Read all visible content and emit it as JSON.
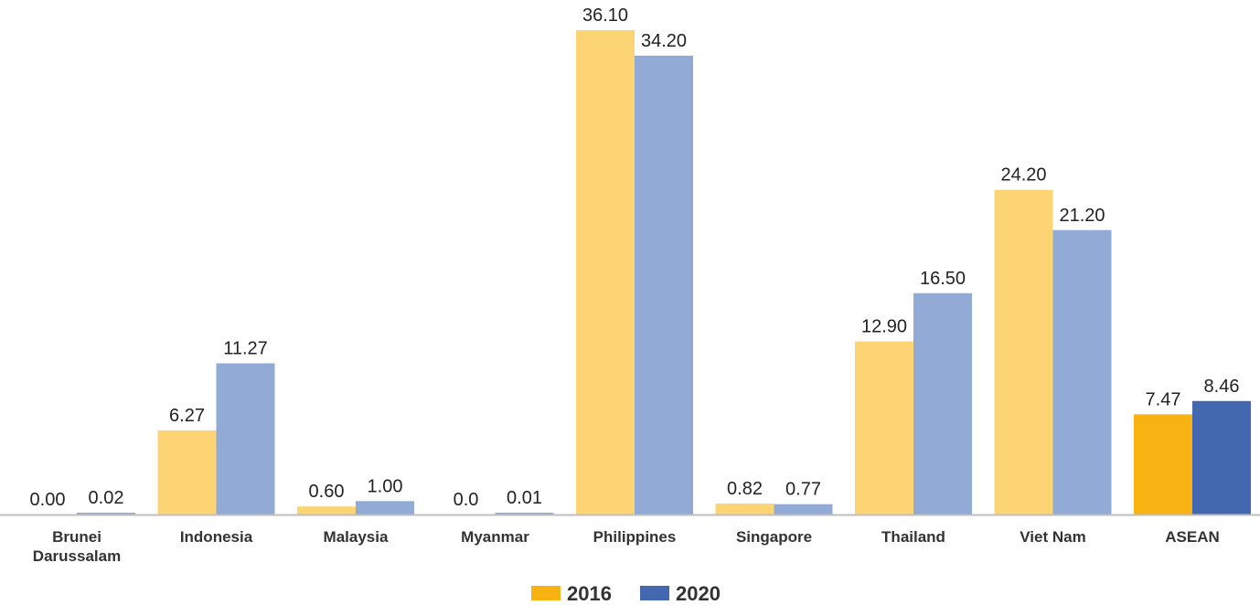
{
  "chart_data": {
    "type": "bar",
    "categories": [
      [
        "Brunei",
        "Darussalam"
      ],
      [
        "Indonesia"
      ],
      [
        "Malaysia"
      ],
      [
        "Myanmar"
      ],
      [
        "Philippines"
      ],
      [
        "Singapore"
      ],
      [
        "Thailand"
      ],
      [
        "Viet Nam"
      ],
      [
        "ASEAN"
      ]
    ],
    "series": [
      {
        "name": "2016",
        "values": [
          0.0,
          6.27,
          0.6,
          0.0,
          36.1,
          0.82,
          12.9,
          24.2,
          7.47
        ],
        "labels": [
          "0.00",
          "6.27",
          "0.60",
          "0.0",
          "36.10",
          "0.82",
          "12.90",
          "24.20",
          "7.47"
        ],
        "color": "#FCD473",
        "highlight_color": "#F8B312"
      },
      {
        "name": "2020",
        "values": [
          0.02,
          11.27,
          1.0,
          0.01,
          34.2,
          0.77,
          16.5,
          21.2,
          8.46
        ],
        "labels": [
          "0.02",
          "11.27",
          "1.00",
          "0.01",
          "34.20",
          "0.77",
          "16.50",
          "21.20",
          "8.46"
        ],
        "color": "#92ABD6",
        "highlight_color": "#4368B0"
      }
    ],
    "highlight_category": "ASEAN",
    "ylim": [
      0,
      37
    ],
    "grid": false,
    "legend": "bottom-center",
    "legend_colors": [
      "#F8B312",
      "#4368B0"
    ],
    "baseline_color": "#BFBFBF"
  }
}
